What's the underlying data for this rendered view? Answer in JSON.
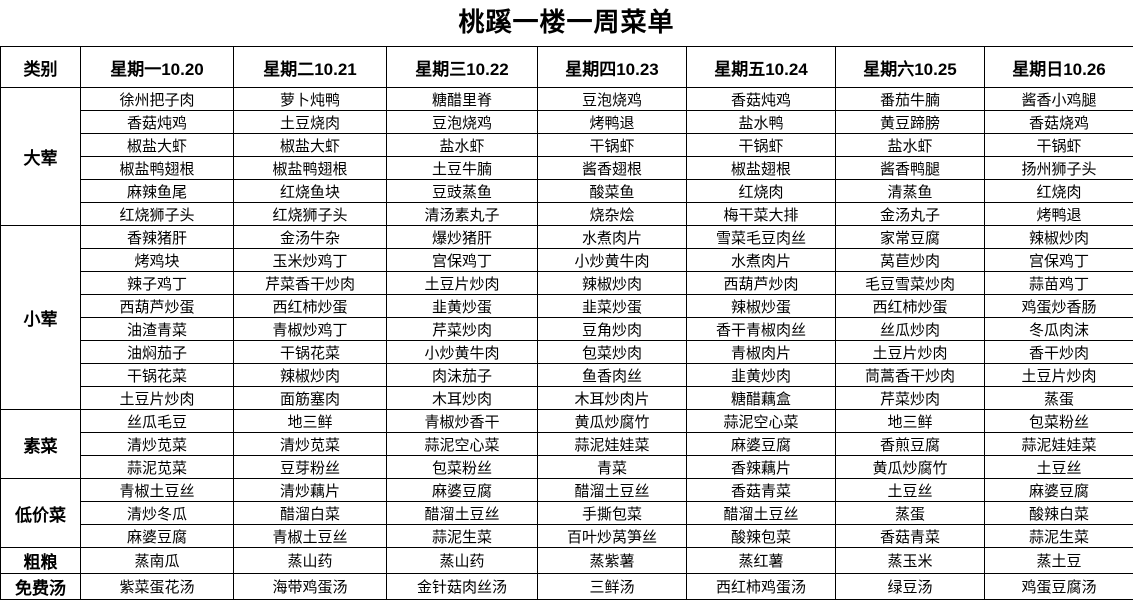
{
  "title": "桃蹊一楼一周菜单",
  "table": {
    "category_header": "类别",
    "day_headers": [
      "星期一10.20",
      "星期二10.21",
      "星期三10.22",
      "星期四10.23",
      "星期五10.24",
      "星期六10.25",
      "星期日10.26"
    ],
    "sections": [
      {
        "category": "大荤",
        "rows": [
          [
            "徐州把子肉",
            "萝卜炖鸭",
            "糖醋里脊",
            "豆泡烧鸡",
            "香菇炖鸡",
            "番茄牛腩",
            "酱香小鸡腿"
          ],
          [
            "香菇炖鸡",
            "土豆烧肉",
            "豆泡烧鸡",
            "烤鸭退",
            "盐水鸭",
            "黄豆蹄膀",
            "香菇烧鸡"
          ],
          [
            "椒盐大虾",
            "椒盐大虾",
            "盐水虾",
            "干锅虾",
            "干锅虾",
            "盐水虾",
            "干锅虾"
          ],
          [
            "椒盐鸭翅根",
            "椒盐鸭翅根",
            "土豆牛腩",
            "酱香翅根",
            "椒盐翅根",
            "酱香鸭腿",
            "扬州狮子头"
          ],
          [
            "麻辣鱼尾",
            "红烧鱼块",
            "豆豉蒸鱼",
            "酸菜鱼",
            "红烧肉",
            "清蒸鱼",
            "红烧肉"
          ],
          [
            "红烧狮子头",
            "红烧狮子头",
            "清汤素丸子",
            "烧杂烩",
            "梅干菜大排",
            "金汤丸子",
            "烤鸭退"
          ]
        ]
      },
      {
        "category": "小荤",
        "rows": [
          [
            "香辣猪肝",
            "金汤牛杂",
            "爆炒猪肝",
            "水煮肉片",
            "雪菜毛豆肉丝",
            "家常豆腐",
            "辣椒炒肉"
          ],
          [
            "烤鸡块",
            "玉米炒鸡丁",
            "宫保鸡丁",
            "小炒黄牛肉",
            "水煮肉片",
            "莴苣炒肉",
            "宫保鸡丁"
          ],
          [
            "辣子鸡丁",
            "芹菜香干炒肉",
            "土豆片炒肉",
            "辣椒炒肉",
            "西葫芦炒肉",
            "毛豆雪菜炒肉",
            "蒜苗鸡丁"
          ],
          [
            "西葫芦炒蛋",
            "西红柿炒蛋",
            "韭黄炒蛋",
            "韭菜炒蛋",
            "辣椒炒蛋",
            "西红柿炒蛋",
            "鸡蛋炒香肠"
          ],
          [
            "油渣青菜",
            "青椒炒鸡丁",
            "芹菜炒肉",
            "豆角炒肉",
            "香干青椒肉丝",
            "丝瓜炒肉",
            "冬瓜肉沫"
          ],
          [
            "油焖茄子",
            "干锅花菜",
            "小炒黄牛肉",
            "包菜炒肉",
            "青椒肉片",
            "土豆片炒肉",
            "香干炒肉"
          ],
          [
            "干锅花菜",
            "辣椒炒肉",
            "肉沫茄子",
            "鱼香肉丝",
            "韭黄炒肉",
            "茼蒿香干炒肉",
            "土豆片炒肉"
          ],
          [
            "土豆片炒肉",
            "面筋塞肉",
            "木耳炒肉",
            "木耳炒肉片",
            "糖醋藕盒",
            "芹菜炒肉",
            "蒸蛋"
          ]
        ]
      },
      {
        "category": "素菜",
        "rows": [
          [
            "丝瓜毛豆",
            "地三鲜",
            "青椒炒香干",
            "黄瓜炒腐竹",
            "蒜泥空心菜",
            "地三鲜",
            "包菜粉丝"
          ],
          [
            "清炒苋菜",
            "清炒苋菜",
            "蒜泥空心菜",
            "蒜泥娃娃菜",
            "麻婆豆腐",
            "香煎豆腐",
            "蒜泥娃娃菜"
          ],
          [
            "蒜泥苋菜",
            "豆芽粉丝",
            "包菜粉丝",
            "青菜",
            "香辣藕片",
            "黄瓜炒腐竹",
            "土豆丝"
          ]
        ]
      },
      {
        "category": "低价菜",
        "rows": [
          [
            "青椒土豆丝",
            "清炒藕片",
            "麻婆豆腐",
            "醋溜土豆丝",
            "香菇青菜",
            "土豆丝",
            "麻婆豆腐"
          ],
          [
            "清炒冬瓜",
            "醋溜白菜",
            "醋溜土豆丝",
            "手撕包菜",
            "醋溜土豆丝",
            "蒸蛋",
            "酸辣白菜"
          ],
          [
            "麻婆豆腐",
            "青椒土豆丝",
            "蒜泥生菜",
            "百叶炒莴笋丝",
            "酸辣包菜",
            "香菇青菜",
            "蒜泥生菜"
          ]
        ]
      },
      {
        "category": "粗粮",
        "rows": [
          [
            "蒸南瓜",
            "蒸山药",
            "蒸山药",
            "蒸紫薯",
            "蒸红薯",
            "蒸玉米",
            "蒸土豆"
          ]
        ]
      },
      {
        "category": "免费汤",
        "rows": [
          [
            "紫菜蛋花汤",
            "海带鸡蛋汤",
            "金针菇肉丝汤",
            "三鲜汤",
            "西红柿鸡蛋汤",
            "绿豆汤",
            "鸡蛋豆腐汤"
          ]
        ]
      }
    ]
  }
}
